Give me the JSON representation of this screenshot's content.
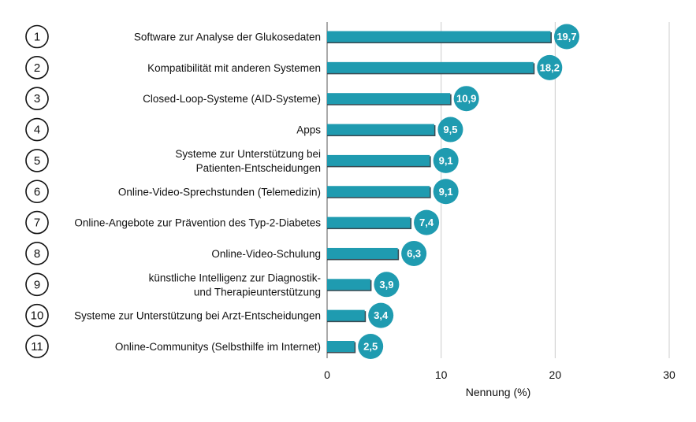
{
  "chart_data": {
    "type": "bar",
    "orientation": "horizontal",
    "ranks": [
      "1",
      "2",
      "3",
      "4",
      "5",
      "6",
      "7",
      "8",
      "9",
      "10",
      "11"
    ],
    "categories": [
      [
        "Software zur Analyse der Glukosedaten"
      ],
      [
        "Kompatibilität mit anderen Systemen"
      ],
      [
        "Closed-Loop-Systeme (AID-Systeme)"
      ],
      [
        "Apps"
      ],
      [
        "Systeme zur Unterstützung bei",
        "Patienten-Entscheidungen"
      ],
      [
        "Online-Video-Sprechstunden (Telemedizin)"
      ],
      [
        "Online-Angebote zur Prävention des Typ-2-Diabetes"
      ],
      [
        "Online-Video-Schulung"
      ],
      [
        "künstliche Intelligenz zur Diagnostik-",
        "und Therapieunterstützung"
      ],
      [
        "Systeme zur Unterstützung bei Arzt-Entscheidungen"
      ],
      [
        "Online-Communitys (Selbsthilfe im Internet)"
      ]
    ],
    "values": [
      19.7,
      18.2,
      10.9,
      9.5,
      9.1,
      9.1,
      7.4,
      6.3,
      3.9,
      3.4,
      2.5
    ],
    "value_labels": [
      "19,7",
      "18,2",
      "10,9",
      "9,5",
      "9,1",
      "9,1",
      "7,4",
      "6,3",
      "3,9",
      "3,4",
      "2,5"
    ],
    "xlabel": "Nennung (%)",
    "xlim": [
      0,
      30
    ],
    "xticks": [
      0,
      10,
      20,
      30
    ],
    "grid": true,
    "colors": {
      "bar": "#1f9bb0",
      "bar_shadow": "#3a4a52",
      "badge": "#1f9bb0",
      "grid": "#cccccc",
      "rank_border": "#111111"
    }
  }
}
